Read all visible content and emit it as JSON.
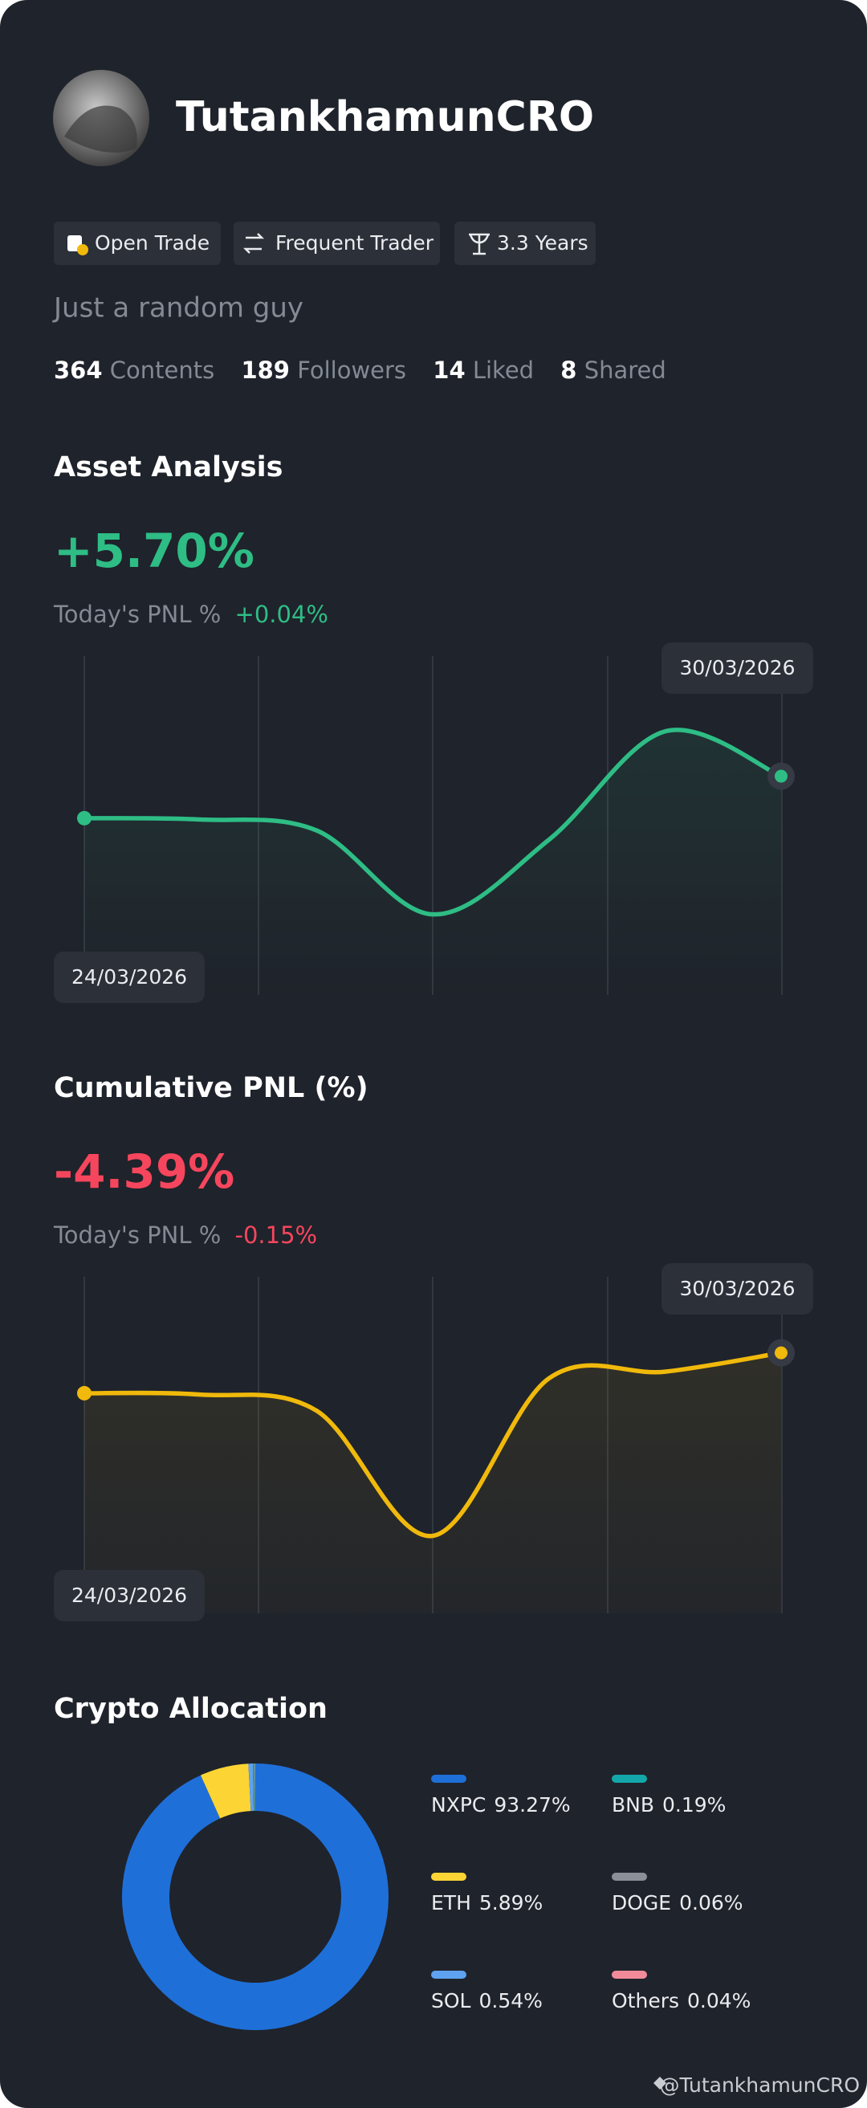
{
  "profile": {
    "name": "TutankhamunCRO",
    "badges": [
      "Open Trade",
      "Frequent Trader",
      "3.3 Years"
    ],
    "bio": "Just a random guy",
    "stats": [
      {
        "value": 364,
        "label": "Contents"
      },
      {
        "value": 189,
        "label": "Followers"
      },
      {
        "value": 14,
        "label": "Liked"
      },
      {
        "value": 8,
        "label": "Shared"
      }
    ]
  },
  "chart_data": [
    {
      "type": "line",
      "title": "Asset Analysis",
      "headline": "+5.70%",
      "pnl_label": "Today's PNL %",
      "pnl_value": "+0.04%",
      "x": [
        "24/03/2026",
        null,
        null,
        null,
        null,
        null,
        "30/03/2026"
      ],
      "series": [
        {
          "color": "#2ebd85",
          "values": [
            0,
            -0.18,
            -1.66,
            -13.06,
            -2.94,
            11.78,
            5.7
          ]
        }
      ],
      "ylim": [
        -24,
        22
      ]
    },
    {
      "type": "line",
      "title": "Cumulative PNL (%)",
      "headline": "-4.39%",
      "pnl_label": "Today's PNL %",
      "pnl_value": "-0.15%",
      "x": [
        "24/03/2026",
        null,
        null,
        null,
        null,
        null,
        "30/03/2026"
      ],
      "series": [
        {
          "color": "#f0b90b",
          "values": [
            -9.91,
            -10.1,
            -12.3,
            -29.41,
            -7.89,
            -6.97,
            -4.39
          ]
        }
      ],
      "ylim": [
        -40,
        6
      ]
    },
    {
      "type": "pie",
      "title": "Crypto Allocation",
      "categories": [
        "NXPC",
        "ETH",
        "SOL",
        "BNB",
        "DOGE",
        "Others"
      ],
      "values": [
        93.27,
        5.89,
        0.54,
        0.19,
        0.06,
        0.04
      ],
      "value_labels": [
        "93.27%",
        "5.89%",
        "0.54%",
        "0.19%",
        "0.06%",
        "0.04%"
      ],
      "colors": [
        "#1f6fd8",
        "#fcd535",
        "#5ea2f0",
        "#14a7aa",
        "#8a8f98",
        "#f28b99"
      ]
    }
  ],
  "footer": "@TutankhamunCRO"
}
